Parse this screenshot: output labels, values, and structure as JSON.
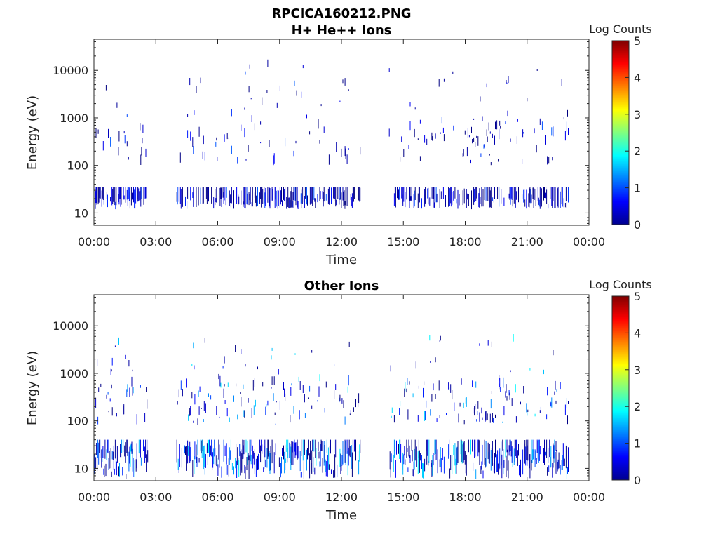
{
  "figure_title": "RPCICA160212.PNG",
  "chart_data": [
    {
      "type": "heatmap",
      "title": "H+ He++ Ions",
      "xlabel": "Time",
      "ylabel": "Energy (eV)",
      "x_ticks": [
        "00:00",
        "03:00",
        "06:00",
        "09:00",
        "12:00",
        "15:00",
        "18:00",
        "21:00",
        "00:00"
      ],
      "xlim_hours": [
        0,
        24
      ],
      "y_scale": "log",
      "ylim": [
        5.5,
        45000
      ],
      "y_ticks": [
        10,
        100,
        1000,
        10000
      ],
      "y_tick_labels": [
        "10",
        "100",
        "1000",
        "10000"
      ],
      "colorbar": {
        "title": "Log Counts",
        "min": 0,
        "max": 5,
        "ticks": [
          "0",
          "1",
          "2",
          "3",
          "4",
          "5"
        ],
        "colormap": "jet"
      },
      "data_coverage_hours": [
        [
          0.05,
          2.6
        ],
        [
          4.0,
          12.9
        ],
        [
          14.3,
          23.0
        ]
      ],
      "activity": {
        "low_band_eV": [
          12,
          35
        ],
        "mid_band_eV": [
          100,
          600
        ],
        "high_band_eV": [
          600,
          12000
        ],
        "typical_log_counts": [
          0,
          1.1
        ]
      }
    },
    {
      "type": "heatmap",
      "title": "Other Ions",
      "xlabel": "Time",
      "ylabel": "Energy (eV)",
      "x_ticks": [
        "00:00",
        "03:00",
        "06:00",
        "09:00",
        "12:00",
        "15:00",
        "18:00",
        "21:00",
        "00:00"
      ],
      "xlim_hours": [
        0,
        24
      ],
      "y_scale": "log",
      "ylim": [
        5.5,
        45000
      ],
      "y_ticks": [
        10,
        100,
        1000,
        10000
      ],
      "y_tick_labels": [
        "10",
        "100",
        "1000",
        "10000"
      ],
      "colorbar": {
        "title": "Log Counts",
        "min": 0,
        "max": 5,
        "ticks": [
          "0",
          "1",
          "2",
          "3",
          "4",
          "5"
        ],
        "colormap": "jet"
      },
      "data_coverage_hours": [
        [
          0.0,
          2.6
        ],
        [
          4.0,
          12.9
        ],
        [
          14.3,
          23.0
        ]
      ],
      "activity": {
        "low_band_eV": [
          6,
          40
        ],
        "mid_band_eV": [
          80,
          600
        ],
        "high_band_eV": [
          600,
          5000
        ],
        "typical_log_counts": [
          0,
          1.9
        ]
      }
    }
  ]
}
